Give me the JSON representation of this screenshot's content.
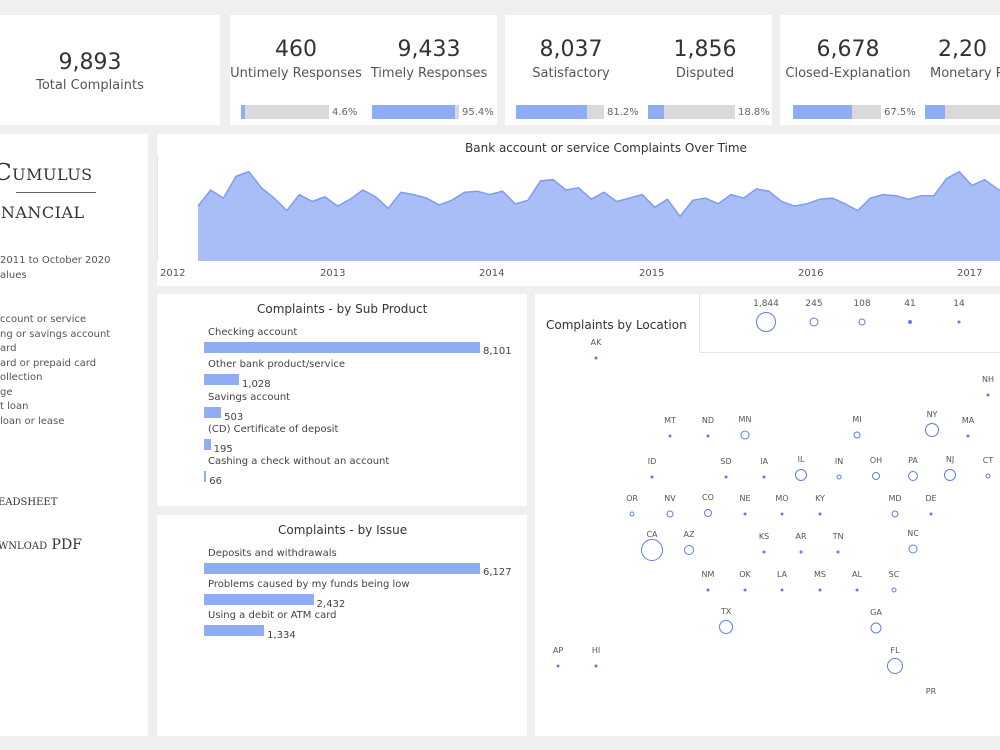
{
  "kpis": {
    "total": {
      "value": "9,893",
      "label": "Total Complaints"
    },
    "untimely": {
      "value": "460",
      "label": "Untimely Responses",
      "pct_label": "4.6%",
      "pct": 4.6
    },
    "timely": {
      "value": "9,433",
      "label": "Timely Responses",
      "pct_label": "95.4%",
      "pct": 95.4
    },
    "satisfactory": {
      "value": "8,037",
      "label": "Satisfactory",
      "pct_label": "81.2%",
      "pct": 81.2
    },
    "disputed": {
      "value": "1,856",
      "label": "Disputed",
      "pct_label": "18.8%",
      "pct": 18.8
    },
    "closed_explanation": {
      "value": "6,678",
      "label": "Closed-Explanation",
      "pct_label": "67.5%",
      "pct": 67.5
    },
    "monetary": {
      "value": "2,20",
      "label": "Monetary P",
      "pct": 22
    }
  },
  "sidebar": {
    "logo_top": "Cumulus",
    "logo_bottom": "inancial",
    "date_range": "2011 to October 2020",
    "values_label": "alues",
    "product_items": [
      "ccount or service",
      "ng or savings account",
      "ard",
      "ard or prepaid card",
      "ollection",
      "ge",
      "t loan",
      " loan or lease"
    ],
    "spreadsheet_link": "eadsheet",
    "pdf_link": "wnload PDF"
  },
  "timeline": {
    "title": "Bank account or service Complaints Over Time",
    "year_labels": [
      "2012",
      "2013",
      "2014",
      "2015",
      "2016",
      "2017"
    ]
  },
  "sub_product": {
    "title": "Complaints - by Sub Product",
    "bars": [
      {
        "label": "Checking account",
        "value": 8101,
        "value_label": "8,101"
      },
      {
        "label": "Other bank product/service",
        "value": 1028,
        "value_label": "1,028"
      },
      {
        "label": "Savings account",
        "value": 503,
        "value_label": "503"
      },
      {
        "label": "(CD) Certificate of deposit",
        "value": 195,
        "value_label": "195"
      },
      {
        "label": "Cashing a check without an account",
        "value": 66,
        "value_label": "66"
      }
    ]
  },
  "issue": {
    "title": "Complaints - by Issue",
    "bars": [
      {
        "label": "Deposits and withdrawals",
        "value": 6127,
        "value_label": "6,127"
      },
      {
        "label": "Problems caused by my funds being low",
        "value": 2432,
        "value_label": "2,432"
      },
      {
        "label": "Using a debit or ATM card",
        "value": 1334,
        "value_label": "1,334"
      }
    ]
  },
  "map": {
    "title": "Complaints by Location",
    "legend": [
      "1,844",
      "245",
      "108",
      "41",
      "14"
    ],
    "states": [
      "AK",
      "NH",
      "MT",
      "ND",
      "MN",
      "MI",
      "NY",
      "MA",
      "ID",
      "SD",
      "IA",
      "IL",
      "IN",
      "OH",
      "PA",
      "NJ",
      "CT",
      "OR",
      "NV",
      "CO",
      "NE",
      "MO",
      "KY",
      "MD",
      "DE",
      "CA",
      "AZ",
      "KS",
      "AR",
      "TN",
      "NC",
      "NM",
      "OK",
      "LA",
      "MS",
      "AL",
      "SC",
      "TX",
      "GA",
      "AP",
      "HI",
      "FL",
      "PR"
    ]
  },
  "chart_data": {
    "type": "area",
    "title": "Bank account or service Complaints Over Time",
    "x_labels": [
      "2012",
      "2013",
      "2014",
      "2015",
      "2016",
      "2017"
    ],
    "series": [
      {
        "values": [
          48,
          62,
          55,
          74,
          78,
          64,
          55,
          44,
          58,
          52,
          56,
          48,
          54,
          62,
          56,
          46,
          60,
          58,
          55,
          49,
          53,
          60,
          61,
          58,
          61,
          50,
          53,
          70,
          71,
          62,
          64,
          54,
          60,
          52,
          55,
          58,
          47,
          54,
          39,
          53,
          55,
          50,
          58,
          55,
          63,
          61,
          52,
          48,
          50,
          54,
          55,
          50,
          44,
          55,
          58,
          57,
          54,
          57,
          57,
          72,
          78,
          66,
          71,
          63,
          58
        ]
      }
    ]
  }
}
